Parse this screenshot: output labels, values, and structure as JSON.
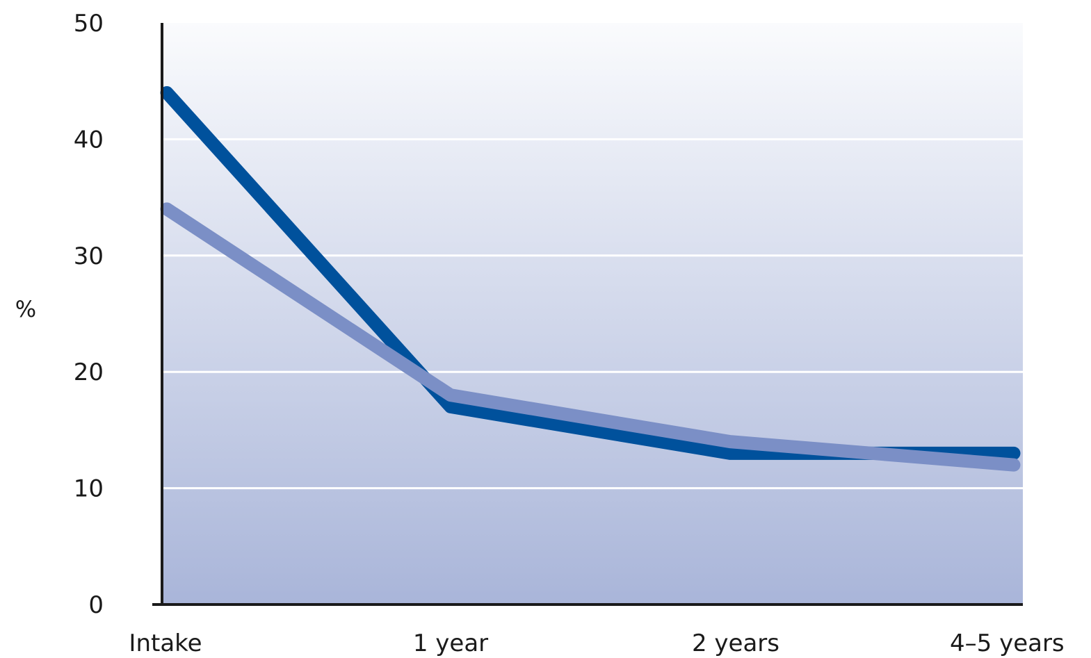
{
  "chart_data": {
    "type": "line",
    "title": "",
    "xlabel": "",
    "ylabel": "%",
    "categories": [
      "Intake",
      "1 year",
      "2 years",
      "4–5 years"
    ],
    "ylim": [
      0,
      50
    ],
    "yticks": [
      0,
      10,
      20,
      30,
      40,
      50
    ],
    "grid": true,
    "legend": "none",
    "series": [
      {
        "color": "#00519c",
        "values": [
          44,
          17,
          13,
          13
        ]
      },
      {
        "color": "#7b8fc6",
        "values": [
          34,
          18,
          14,
          12
        ]
      }
    ],
    "background_gradient": [
      "#fafbfd",
      "#a9b5d9"
    ]
  }
}
